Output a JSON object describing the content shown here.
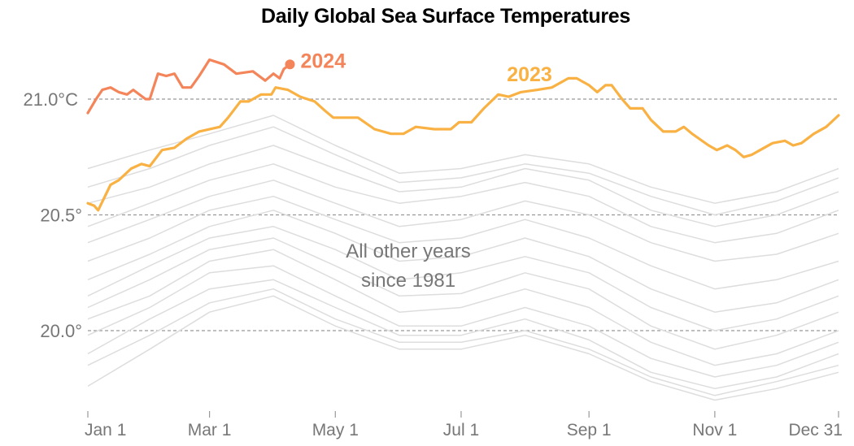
{
  "chart_data": {
    "type": "line",
    "title": "Daily Global Sea Surface Temperatures",
    "xlabel": "",
    "ylabel": "",
    "x_unit": "day of year",
    "xlim": [
      "Jan 1",
      "Dec 31"
    ],
    "ylim": [
      19.7,
      21.2
    ],
    "y_ticks": [
      {
        "value": 21.0,
        "label": "21.0°C"
      },
      {
        "value": 20.5,
        "label": "20.5°"
      },
      {
        "value": 20.0,
        "label": "20.0°"
      }
    ],
    "x_ticks": [
      {
        "day": 0,
        "label": "Jan 1"
      },
      {
        "day": 59,
        "label": "Mar 1"
      },
      {
        "day": 120,
        "label": "May 1"
      },
      {
        "day": 181,
        "label": "Jul 1"
      },
      {
        "day": 243,
        "label": "Sep 1"
      },
      {
        "day": 304,
        "label": "Nov 1"
      },
      {
        "day": 364,
        "label": "Dec 31"
      }
    ],
    "grid": "horizontal dashed at y ticks",
    "annotation": [
      "All other years",
      "since 1981"
    ],
    "series": [
      {
        "name": "2024",
        "color": "#f4855a",
        "end_marker": true,
        "points": [
          [
            0,
            20.94
          ],
          [
            4,
            21.0
          ],
          [
            7,
            21.04
          ],
          [
            11,
            21.05
          ],
          [
            15,
            21.03
          ],
          [
            19,
            21.02
          ],
          [
            22,
            21.04
          ],
          [
            28,
            21.0
          ],
          [
            30,
            21.0
          ],
          [
            34,
            21.11
          ],
          [
            38,
            21.1
          ],
          [
            42,
            21.11
          ],
          [
            46,
            21.05
          ],
          [
            50,
            21.05
          ],
          [
            54,
            21.1
          ],
          [
            59,
            21.17
          ],
          [
            66,
            21.15
          ],
          [
            72,
            21.11
          ],
          [
            80,
            21.12
          ],
          [
            86,
            21.08
          ],
          [
            90,
            21.11
          ],
          [
            93,
            21.09
          ],
          [
            95,
            21.13
          ],
          [
            98,
            21.15
          ]
        ]
      },
      {
        "name": "2023",
        "color": "#f9b143",
        "points": [
          [
            0,
            20.55
          ],
          [
            3,
            20.54
          ],
          [
            5,
            20.52
          ],
          [
            11,
            20.63
          ],
          [
            15,
            20.65
          ],
          [
            21,
            20.7
          ],
          [
            26,
            20.72
          ],
          [
            30,
            20.71
          ],
          [
            36,
            20.78
          ],
          [
            42,
            20.79
          ],
          [
            48,
            20.83
          ],
          [
            54,
            20.86
          ],
          [
            64,
            20.88
          ],
          [
            68,
            20.92
          ],
          [
            74,
            20.99
          ],
          [
            78,
            20.99
          ],
          [
            84,
            21.02
          ],
          [
            89,
            21.02
          ],
          [
            91,
            21.05
          ],
          [
            97,
            21.04
          ],
          [
            103,
            21.01
          ],
          [
            110,
            20.99
          ],
          [
            115,
            20.95
          ],
          [
            119,
            20.92
          ],
          [
            131,
            20.92
          ],
          [
            139,
            20.87
          ],
          [
            147,
            20.85
          ],
          [
            153,
            20.85
          ],
          [
            159,
            20.88
          ],
          [
            168,
            20.87
          ],
          [
            176,
            20.87
          ],
          [
            180,
            20.9
          ],
          [
            186,
            20.9
          ],
          [
            192,
            20.96
          ],
          [
            199,
            21.02
          ],
          [
            204,
            21.01
          ],
          [
            210,
            21.03
          ],
          [
            218,
            21.04
          ],
          [
            225,
            21.05
          ],
          [
            233,
            21.09
          ],
          [
            237,
            21.09
          ],
          [
            243,
            21.06
          ],
          [
            247,
            21.03
          ],
          [
            251,
            21.06
          ],
          [
            254,
            21.06
          ],
          [
            259,
            21.0
          ],
          [
            263,
            20.96
          ],
          [
            269,
            20.96
          ],
          [
            273,
            20.91
          ],
          [
            279,
            20.86
          ],
          [
            285,
            20.86
          ],
          [
            289,
            20.88
          ],
          [
            293,
            20.85
          ],
          [
            301,
            20.8
          ],
          [
            305,
            20.78
          ],
          [
            310,
            20.8
          ],
          [
            314,
            20.78
          ],
          [
            318,
            20.75
          ],
          [
            322,
            20.76
          ],
          [
            326,
            20.78
          ],
          [
            332,
            20.81
          ],
          [
            338,
            20.82
          ],
          [
            342,
            20.8
          ],
          [
            346,
            20.81
          ],
          [
            352,
            20.85
          ],
          [
            358,
            20.88
          ],
          [
            364,
            20.93
          ]
        ]
      }
    ],
    "other_years": {
      "color": "#dddddd",
      "months_days": [
        0,
        30,
        59,
        90,
        120,
        151,
        181,
        212,
        243,
        273,
        304,
        334,
        364
      ],
      "series": [
        [
          20.7,
          20.78,
          20.85,
          20.93,
          20.8,
          20.68,
          20.7,
          20.76,
          20.72,
          20.62,
          20.55,
          20.6,
          20.7
        ],
        [
          20.62,
          20.7,
          20.8,
          20.88,
          20.76,
          20.64,
          20.66,
          20.72,
          20.68,
          20.58,
          20.5,
          20.56,
          20.66
        ],
        [
          20.55,
          20.62,
          20.72,
          20.8,
          20.7,
          20.6,
          20.62,
          20.7,
          20.65,
          20.52,
          20.45,
          20.5,
          20.6
        ],
        [
          20.45,
          20.55,
          20.65,
          20.72,
          20.62,
          20.55,
          20.58,
          20.64,
          20.58,
          20.45,
          20.38,
          20.42,
          20.52
        ],
        [
          20.38,
          20.48,
          20.58,
          20.65,
          20.55,
          20.45,
          20.48,
          20.56,
          20.5,
          20.38,
          20.3,
          20.33,
          20.42
        ],
        [
          20.3,
          20.4,
          20.52,
          20.58,
          20.48,
          20.38,
          20.4,
          20.48,
          20.4,
          20.28,
          20.18,
          20.22,
          20.3
        ],
        [
          20.22,
          20.33,
          20.45,
          20.52,
          20.42,
          20.3,
          20.32,
          20.4,
          20.32,
          20.18,
          20.08,
          20.12,
          20.22
        ],
        [
          20.15,
          20.28,
          20.4,
          20.45,
          20.35,
          20.22,
          20.25,
          20.32,
          20.25,
          20.1,
          20.0,
          20.05,
          20.15
        ],
        [
          20.1,
          20.22,
          20.35,
          20.4,
          20.28,
          20.15,
          20.16,
          20.25,
          20.18,
          20.02,
          19.92,
          19.98,
          20.08
        ],
        [
          20.05,
          20.15,
          20.3,
          20.35,
          20.22,
          20.08,
          20.1,
          20.18,
          20.1,
          19.95,
          19.85,
          19.9,
          20.0
        ],
        [
          19.98,
          20.1,
          20.25,
          20.28,
          20.15,
          20.02,
          20.02,
          20.1,
          20.02,
          19.88,
          19.8,
          19.85,
          19.95
        ],
        [
          19.9,
          20.05,
          20.18,
          20.22,
          20.1,
          19.98,
          19.98,
          20.05,
          19.96,
          19.82,
          19.75,
          19.8,
          19.9
        ],
        [
          19.85,
          19.98,
          20.12,
          20.18,
          20.05,
          19.95,
          19.95,
          20.0,
          19.92,
          19.8,
          19.72,
          19.78,
          19.85
        ],
        [
          19.76,
          19.92,
          20.08,
          20.15,
          20.02,
          19.92,
          19.92,
          19.98,
          19.9,
          19.78,
          19.7,
          19.75,
          19.82
        ]
      ]
    }
  }
}
